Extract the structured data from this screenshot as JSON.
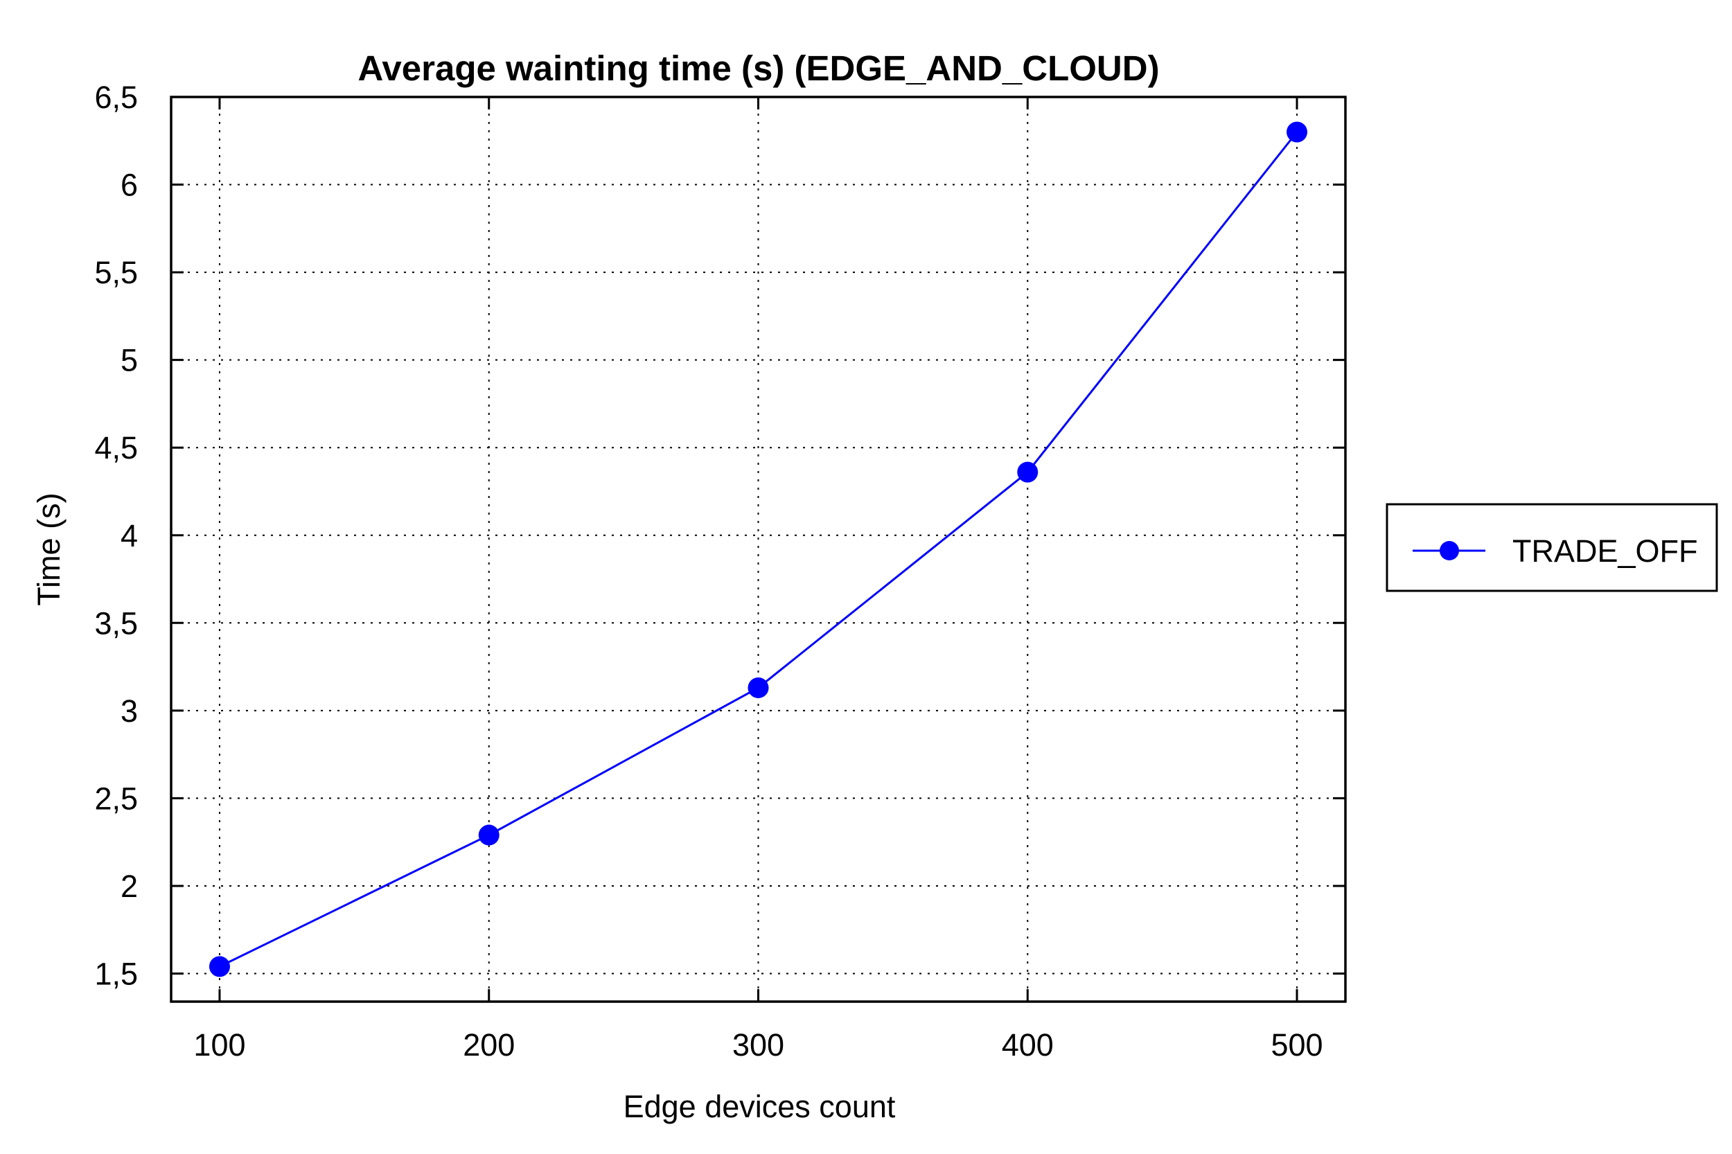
{
  "chart_data": {
    "type": "line",
    "title": "Average wainting time (s) (EDGE_AND_CLOUD)",
    "xlabel": "Edge devices count",
    "ylabel": "Time (s)",
    "x": [
      100,
      200,
      300,
      400,
      500
    ],
    "x_tick_labels": [
      "100",
      "200",
      "300",
      "400",
      "500"
    ],
    "xlim": [
      82,
      518
    ],
    "ylim": [
      1.34,
      6.5
    ],
    "y_ticks": [
      1.5,
      2,
      2.5,
      3,
      3.5,
      4,
      4.5,
      5,
      5.5,
      6,
      6.5
    ],
    "y_tick_labels": [
      "1,5",
      "2",
      "2,5",
      "3",
      "3,5",
      "4",
      "4,5",
      "5",
      "5,5",
      "6",
      "6,5"
    ],
    "grid": true,
    "legend_position": "right",
    "series": [
      {
        "name": "TRADE_OFF",
        "color": "#0000ff",
        "marker": "circle",
        "values": [
          1.54,
          2.29,
          3.13,
          4.36,
          6.3
        ]
      }
    ]
  }
}
